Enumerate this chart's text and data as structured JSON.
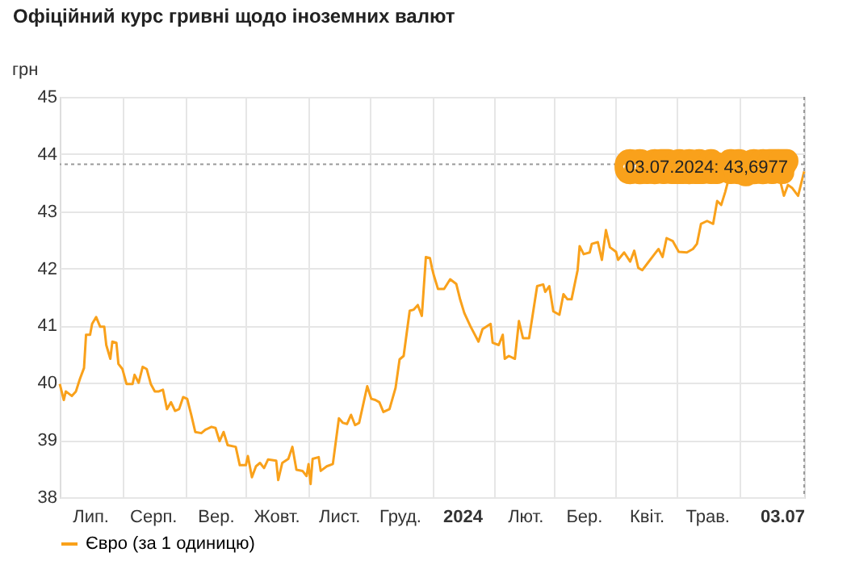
{
  "chart_data": {
    "type": "line",
    "title": "Офіційний курс гривні щодо іноземних валют",
    "ylabel": "грн",
    "x": [
      "2023-07-01",
      "2023-07-03",
      "2023-07-04",
      "2023-07-07",
      "2023-07-09",
      "2023-07-11",
      "2023-07-13",
      "2023-07-14",
      "2023-07-16",
      "2023-07-17",
      "2023-07-19",
      "2023-07-21",
      "2023-07-23",
      "2023-07-24",
      "2023-07-26",
      "2023-07-27",
      "2023-07-29",
      "2023-07-30",
      "2023-08-01",
      "2023-08-03",
      "2023-08-06",
      "2023-08-07",
      "2023-08-09",
      "2023-08-11",
      "2023-08-13",
      "2023-08-15",
      "2023-08-17",
      "2023-08-19",
      "2023-08-21",
      "2023-08-23",
      "2023-08-25",
      "2023-08-27",
      "2023-08-29",
      "2023-08-31",
      "2023-09-02",
      "2023-09-04",
      "2023-09-06",
      "2023-09-09",
      "2023-09-11",
      "2023-09-14",
      "2023-09-16",
      "2023-09-18",
      "2023-09-20",
      "2023-09-22",
      "2023-09-26",
      "2023-09-28",
      "2023-10-01",
      "2023-10-02",
      "2023-10-04",
      "2023-10-06",
      "2023-10-08",
      "2023-10-10",
      "2023-10-12",
      "2023-10-16",
      "2023-10-17",
      "2023-10-19",
      "2023-10-22",
      "2023-10-24",
      "2023-10-26",
      "2023-10-29",
      "2023-10-31",
      "2023-11-01",
      "2023-11-02",
      "2023-11-03",
      "2023-11-06",
      "2023-11-07",
      "2023-11-10",
      "2023-11-13",
      "2023-11-16",
      "2023-11-18",
      "2023-11-20",
      "2023-11-22",
      "2023-11-24",
      "2023-11-26",
      "2023-11-30",
      "2023-12-02",
      "2023-12-04",
      "2023-12-06",
      "2023-12-08",
      "2023-12-11",
      "2023-12-14",
      "2023-12-16",
      "2023-12-18",
      "2023-12-21",
      "2023-12-23",
      "2023-12-25",
      "2023-12-27",
      "2023-12-29",
      "2023-12-31",
      "2024-01-01",
      "2024-01-02",
      "2024-01-04",
      "2024-01-07",
      "2024-01-10",
      "2024-01-13",
      "2024-01-15",
      "2024-01-17",
      "2024-01-20",
      "2024-01-24",
      "2024-01-26",
      "2024-01-30",
      "2024-01-31",
      "2024-02-03",
      "2024-02-05",
      "2024-02-06",
      "2024-02-08",
      "2024-02-11",
      "2024-02-13",
      "2024-02-15",
      "2024-02-18",
      "2024-02-22",
      "2024-02-25",
      "2024-02-26",
      "2024-02-28",
      "2024-03-01",
      "2024-03-04",
      "2024-03-06",
      "2024-03-08",
      "2024-03-10",
      "2024-03-13",
      "2024-03-14",
      "2024-03-16",
      "2024-03-19",
      "2024-03-20",
      "2024-03-23",
      "2024-03-25",
      "2024-03-27",
      "2024-03-29",
      "2024-04-01",
      "2024-04-02",
      "2024-04-05",
      "2024-04-08",
      "2024-04-10",
      "2024-04-12",
      "2024-04-14",
      "2024-04-17",
      "2024-04-20",
      "2024-04-22",
      "2024-04-24",
      "2024-04-26",
      "2024-04-29",
      "2024-05-02",
      "2024-05-06",
      "2024-05-09",
      "2024-05-11",
      "2024-05-13",
      "2024-05-16",
      "2024-05-19",
      "2024-05-21",
      "2024-05-23",
      "2024-05-25",
      "2024-05-29",
      "2024-06-01",
      "2024-06-03",
      "2024-06-06",
      "2024-06-17",
      "2024-06-21",
      "2024-06-23",
      "2024-06-25",
      "2024-06-27",
      "2024-06-30",
      "2024-07-03"
    ],
    "series": [
      {
        "name": "Євро (за 1 одиницю)",
        "color": "#f9a11b",
        "values": [
          39.98,
          39.7,
          39.85,
          39.77,
          39.85,
          40.07,
          40.26,
          40.84,
          40.84,
          41.03,
          41.15,
          40.98,
          40.98,
          40.66,
          40.42,
          40.72,
          40.7,
          40.33,
          40.24,
          39.98,
          39.98,
          40.14,
          40.0,
          40.28,
          40.24,
          39.98,
          39.85,
          39.85,
          39.88,
          39.54,
          39.66,
          39.51,
          39.54,
          39.75,
          39.72,
          39.44,
          39.14,
          39.12,
          39.18,
          39.23,
          39.21,
          38.98,
          39.14,
          38.91,
          38.88,
          38.56,
          38.56,
          38.72,
          38.35,
          38.54,
          38.6,
          38.51,
          38.66,
          38.64,
          38.3,
          38.6,
          38.67,
          38.88,
          38.48,
          38.46,
          38.37,
          38.58,
          38.23,
          38.67,
          38.7,
          38.46,
          38.54,
          38.58,
          39.38,
          39.3,
          39.28,
          39.44,
          39.26,
          39.3,
          39.94,
          39.72,
          39.7,
          39.66,
          39.49,
          39.54,
          39.91,
          40.41,
          40.47,
          41.26,
          41.28,
          41.36,
          41.17,
          42.2,
          42.18,
          42.01,
          41.87,
          41.64,
          41.64,
          41.81,
          41.73,
          41.45,
          41.22,
          40.99,
          40.72,
          40.94,
          41.03,
          40.7,
          40.66,
          40.84,
          40.42,
          40.47,
          40.42,
          41.08,
          40.78,
          40.78,
          41.69,
          41.72,
          41.59,
          41.69,
          41.25,
          41.19,
          41.55,
          41.46,
          41.46,
          41.97,
          42.39,
          42.25,
          42.28,
          42.43,
          42.46,
          42.15,
          42.67,
          42.37,
          42.29,
          42.15,
          42.28,
          42.12,
          42.31,
          42.01,
          41.97,
          42.11,
          42.25,
          42.34,
          42.2,
          42.53,
          42.48,
          42.29,
          42.28,
          42.34,
          42.43,
          42.78,
          42.83,
          42.78,
          43.18,
          43.11,
          43.34,
          43.88,
          43.93,
          43.83,
          43.74,
          43.6,
          43.55,
          43.27,
          43.46,
          43.41,
          43.27,
          43.6977
        ]
      }
    ],
    "xlim": [
      "2023-07-01",
      "2024-07-03"
    ],
    "xticks": [
      {
        "value": "2023-07-16",
        "label": "Лип."
      },
      {
        "value": "2023-08-01",
        "label": null
      },
      {
        "value": "2023-08-16",
        "label": "Серп."
      },
      {
        "value": "2023-09-01",
        "label": null
      },
      {
        "value": "2023-09-16",
        "label": "Вер."
      },
      {
        "value": "2023-10-01",
        "label": null
      },
      {
        "value": "2023-10-16",
        "label": "Жовт."
      },
      {
        "value": "2023-11-01",
        "label": null
      },
      {
        "value": "2023-11-16",
        "label": "Лист."
      },
      {
        "value": "2023-12-01",
        "label": null
      },
      {
        "value": "2023-12-16",
        "label": "Груд."
      },
      {
        "value": "2024-01-01",
        "label": null
      },
      {
        "value": "2024-01-16",
        "label": "2024"
      },
      {
        "value": "2024-02-01",
        "label": null
      },
      {
        "value": "2024-02-16",
        "label": "Лют."
      },
      {
        "value": "2024-03-01",
        "label": null
      },
      {
        "value": "2024-03-16",
        "label": "Бер."
      },
      {
        "value": "2024-04-01",
        "label": null
      },
      {
        "value": "2024-04-16",
        "label": "Квіт."
      },
      {
        "value": "2024-05-01",
        "label": null
      },
      {
        "value": "2024-05-16",
        "label": "Трав."
      },
      {
        "value": "2024-06-01",
        "label": null
      },
      {
        "value": "2024-07-03",
        "label": "03.07"
      }
    ],
    "ylim": [
      38,
      45
    ],
    "yticks": [
      38,
      39,
      40,
      41,
      42,
      43,
      44,
      45
    ],
    "grid": true,
    "legend": "bottom",
    "ref_lines": [
      {
        "axis": "y",
        "value": 43.82,
        "line_style": "dotted",
        "color": "#999999"
      },
      {
        "axis": "x",
        "value": "2024-07-03",
        "line_style": "dotted",
        "color": "#999999"
      }
    ],
    "annotations": [
      {
        "text": "03.07.2024: 43,6977",
        "x": "2024-07-03",
        "y": 43.6977
      }
    ]
  }
}
